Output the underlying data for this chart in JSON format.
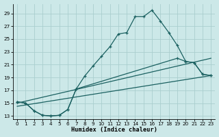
{
  "xlabel": "Humidex (Indice chaleur)",
  "bg_color": "#cce8e8",
  "grid_color": "#aacece",
  "line_color": "#1a6060",
  "xlim": [
    -0.5,
    23.5
  ],
  "ylim": [
    12.5,
    30.5
  ],
  "yticks": [
    13,
    15,
    17,
    19,
    21,
    23,
    25,
    27,
    29
  ],
  "xticks": [
    0,
    1,
    2,
    3,
    4,
    5,
    6,
    7,
    8,
    9,
    10,
    11,
    12,
    13,
    14,
    15,
    16,
    17,
    18,
    19,
    20,
    21,
    22,
    23
  ],
  "line1_x": [
    0,
    1,
    2,
    3,
    4,
    5,
    6,
    7,
    8,
    9,
    10,
    11,
    12,
    13,
    14,
    15,
    16,
    17,
    18,
    19,
    20,
    21,
    22,
    23
  ],
  "line1_y": [
    15.2,
    15.0,
    13.8,
    13.1,
    13.0,
    13.1,
    14.0,
    17.2,
    19.2,
    20.8,
    22.3,
    23.8,
    25.8,
    26.0,
    28.5,
    28.5,
    29.5,
    27.8,
    26.0,
    24.0,
    21.5,
    21.3,
    19.5,
    19.3
  ],
  "line2_x": [
    0,
    1,
    2,
    3,
    4,
    5,
    6,
    7,
    19,
    20,
    21,
    22,
    23
  ],
  "line2_y": [
    15.2,
    15.0,
    13.8,
    13.1,
    13.0,
    13.1,
    14.0,
    17.2,
    22.0,
    21.5,
    21.3,
    19.5,
    19.3
  ],
  "line3_x": [
    0,
    23
  ],
  "line3_y": [
    15.0,
    22.0
  ],
  "line4_x": [
    0,
    23
  ],
  "line4_y": [
    14.5,
    19.3
  ]
}
